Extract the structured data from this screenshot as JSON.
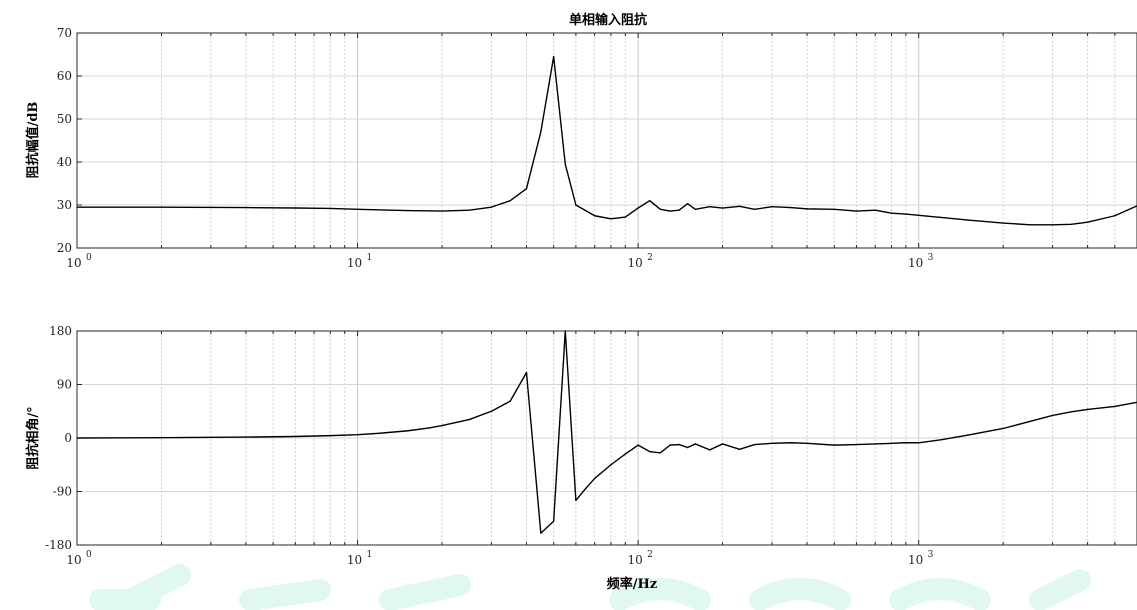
{
  "figure": {
    "title": "单相输入阻抗",
    "top": {
      "ylabel": "阻抗幅值/dB",
      "xlabel": "",
      "yticks": [
        "20",
        "30",
        "40",
        "50",
        "60",
        "70"
      ],
      "ylim": [
        20,
        70
      ]
    },
    "bottom": {
      "ylabel": "阻抗相角/°",
      "xlabel": "频率/Hz",
      "yticks": [
        "-180",
        "-90",
        "0",
        "90",
        "180"
      ],
      "ylim": [
        -180,
        180
      ]
    },
    "xticks": [
      {
        "base": "10",
        "exp": "0"
      },
      {
        "base": "10",
        "exp": "1"
      },
      {
        "base": "10",
        "exp": "2"
      },
      {
        "base": "10",
        "exp": "3"
      }
    ]
  },
  "colors": {
    "line": "#000000",
    "grid": "#d0d0d0",
    "axis": "#262626",
    "watermark": "#c8f0e6"
  },
  "chart_data": [
    {
      "type": "line",
      "title": "单相输入阻抗",
      "xlabel": "",
      "ylabel": "阻抗幅值/dB",
      "xscale": "log",
      "xlim": [
        1,
        6000
      ],
      "ylim": [
        20,
        70
      ],
      "grid": true,
      "x": [
        1,
        2,
        4,
        6,
        8,
        10,
        15,
        20,
        25,
        30,
        35,
        40,
        45,
        50,
        55,
        60,
        70,
        80,
        90,
        100,
        110,
        120,
        130,
        140,
        150,
        160,
        180,
        200,
        230,
        260,
        300,
        350,
        400,
        500,
        600,
        700,
        800,
        900,
        1000,
        1200,
        1500,
        2000,
        2500,
        3000,
        3500,
        4000,
        5000,
        6000
      ],
      "series": [
        {
          "values": [
            29.5,
            29.5,
            29.4,
            29.3,
            29.2,
            29.0,
            28.7,
            28.6,
            28.8,
            29.5,
            31.0,
            33.8,
            47.0,
            64.5,
            39.5,
            30.0,
            27.5,
            26.8,
            27.2,
            29.3,
            31.0,
            29.0,
            28.6,
            28.8,
            30.3,
            29.0,
            29.6,
            29.3,
            29.7,
            29.0,
            29.6,
            29.4,
            29.1,
            29.0,
            28.6,
            28.8,
            28.1,
            27.9,
            27.6,
            27.1,
            26.5,
            25.8,
            25.4,
            25.4,
            25.5,
            26.0,
            27.5,
            29.8
          ]
        }
      ]
    },
    {
      "type": "line",
      "title": "",
      "xlabel": "频率/Hz",
      "ylabel": "阻抗相角/°",
      "xscale": "log",
      "xlim": [
        1,
        6000
      ],
      "ylim": [
        -180,
        180
      ],
      "grid": true,
      "x": [
        1,
        2,
        4,
        6,
        8,
        10,
        12,
        15,
        18,
        20,
        25,
        30,
        35,
        40,
        45,
        50,
        55,
        60,
        65,
        70,
        80,
        90,
        100,
        110,
        120,
        130,
        140,
        150,
        160,
        180,
        200,
        230,
        260,
        300,
        350,
        400,
        500,
        600,
        700,
        800,
        900,
        1000,
        1200,
        1500,
        2000,
        2500,
        3000,
        3500,
        4000,
        5000,
        6000
      ],
      "series": [
        {
          "values": [
            0,
            0.5,
            1.5,
            2.5,
            4,
            5.5,
            8,
            12,
            17,
            21,
            31,
            45,
            62,
            110,
            -160,
            -140,
            180,
            -105,
            -85,
            -68,
            -45,
            -27,
            -12,
            -23,
            -25,
            -12,
            -11,
            -16,
            -10,
            -20,
            -10,
            -19,
            -11,
            -9,
            -8,
            -9,
            -12,
            -11,
            -10,
            -9,
            -8,
            -8,
            -3,
            5,
            16,
            28,
            38,
            44,
            48,
            53,
            60
          ]
        }
      ]
    }
  ]
}
